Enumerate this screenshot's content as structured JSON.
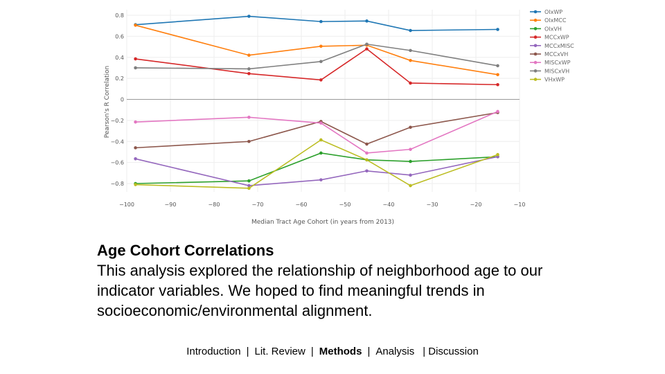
{
  "chart_data": {
    "type": "line",
    "title": "",
    "xlabel": "Median Tract Age Cohort (in years from 2013)",
    "ylabel": "Pearson's R Correlation",
    "xlim": [
      -100,
      -10
    ],
    "ylim": [
      -0.9,
      0.85
    ],
    "xticks": [
      -100,
      -90,
      -80,
      -70,
      -60,
      -50,
      -40,
      -30,
      -20,
      -10
    ],
    "yticks": [
      -0.8,
      -0.6,
      -0.4,
      -0.2,
      0,
      0.2,
      0.4,
      0.6,
      0.8
    ],
    "xtick_labels": [
      "−100",
      "−90",
      "−80",
      "−70",
      "−60",
      "−50",
      "−40",
      "−30",
      "−20",
      "−10"
    ],
    "ytick_labels": [
      "−0.8",
      "−0.6",
      "−0.4",
      "−0.2",
      "0",
      "0.2",
      "0.4",
      "0.6",
      "0.8"
    ],
    "grid": true,
    "legend_position": "right",
    "x": [
      -98,
      -72,
      -55.5,
      -45,
      -35,
      -15
    ],
    "series": [
      {
        "name": "OIxWP",
        "color": "#1f77b4",
        "values": [
          0.71,
          0.79,
          0.74,
          0.745,
          0.655,
          0.665
        ]
      },
      {
        "name": "OIxMCC",
        "color": "#ff7f0e",
        "values": [
          0.705,
          0.42,
          0.505,
          0.515,
          0.37,
          0.235
        ]
      },
      {
        "name": "OIxVH",
        "color": "#2ca02c",
        "values": [
          -0.8,
          -0.775,
          -0.51,
          -0.575,
          -0.59,
          -0.545
        ]
      },
      {
        "name": "MCCxWP",
        "color": "#d62728",
        "values": [
          0.385,
          0.245,
          0.185,
          0.48,
          0.155,
          0.14
        ]
      },
      {
        "name": "MCCxMISC",
        "color": "#9467bd",
        "values": [
          -0.565,
          -0.82,
          -0.765,
          -0.68,
          -0.72,
          -0.545
        ]
      },
      {
        "name": "MCCxVH",
        "color": "#8c564b",
        "values": [
          -0.46,
          -0.4,
          -0.21,
          -0.425,
          -0.265,
          -0.125
        ]
      },
      {
        "name": "MISCxWP",
        "color": "#e377c2",
        "values": [
          -0.215,
          -0.17,
          -0.225,
          -0.51,
          -0.475,
          -0.115
        ]
      },
      {
        "name": "MISCxVH",
        "color": "#7f7f7f",
        "values": [
          0.3,
          0.29,
          0.36,
          0.525,
          0.465,
          0.32
        ]
      },
      {
        "name": "VHxWP",
        "color": "#bcbd22",
        "values": [
          -0.81,
          -0.845,
          -0.385,
          -0.575,
          -0.82,
          -0.525
        ]
      }
    ]
  },
  "slide": {
    "title": "Age Cohort Correlations",
    "body": "This analysis explored the relationship of neighborhood age to our indicator variables. We hoped to find meaningful trends in socioeconomic/environmental alignment."
  },
  "nav": {
    "introduction": "Introduction",
    "lit_review": "Lit. Review",
    "methods": "Methods",
    "analysis": "Analysis",
    "discussion": "| Discussion",
    "separator": "|"
  }
}
